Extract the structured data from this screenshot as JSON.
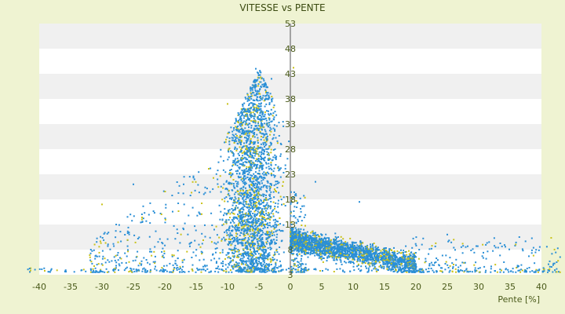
{
  "chart_data": {
    "type": "scatter",
    "title": "VITESSE vs PENTE",
    "xlabel": "Pente [%]",
    "ylabel": "",
    "xlim": [
      -40,
      40
    ],
    "ylim": [
      3,
      53
    ],
    "x_ticks": [
      -40,
      -35,
      -30,
      -25,
      -20,
      -15,
      -10,
      -5,
      0,
      5,
      10,
      15,
      20,
      25,
      30,
      35,
      40
    ],
    "y_ticks": [
      3,
      8,
      13,
      18,
      23,
      28,
      33,
      38,
      43,
      48,
      53
    ],
    "grid": "horizontal bands",
    "legend": "none",
    "series": [
      {
        "color": "#2a8fd6",
        "points_visible": "dense cloud"
      },
      {
        "color": "#c9c21a",
        "points_visible": "sparse overlay"
      }
    ],
    "regions": [
      {
        "x_range": [
          -15,
          -1
        ],
        "y_range": [
          3,
          44
        ],
        "density": "high",
        "peak_x": -5,
        "peak_y": 44
      },
      {
        "x_range": [
          0,
          20
        ],
        "y_range": [
          3,
          17
        ],
        "density": "high",
        "center_y": 9
      },
      {
        "x_range": [
          -30,
          -15
        ],
        "y_range": [
          3,
          22
        ],
        "density": "low"
      },
      {
        "x_range": [
          20,
          42
        ],
        "y_range": [
          3,
          10
        ],
        "density": "low"
      },
      {
        "x_range": [
          -42,
          -30
        ],
        "y_range": [
          3,
          6
        ],
        "density": "very low"
      }
    ]
  },
  "colors": {
    "background": "#eff3d2",
    "plot_band_light": "#ffffff",
    "plot_band_dark": "#f0f0f0",
    "axis": "#555555",
    "series_main": "#2a8fd6",
    "series_secondary": "#c9c21a"
  }
}
